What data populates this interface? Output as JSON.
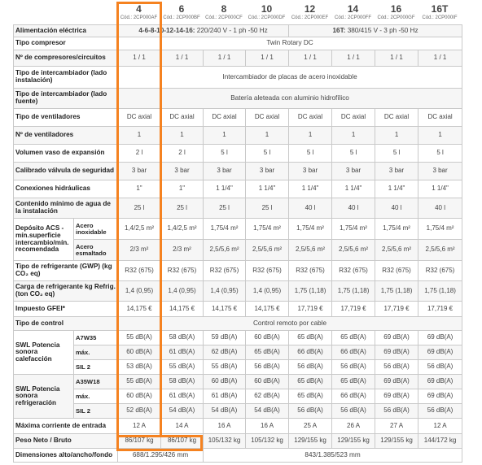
{
  "models": [
    {
      "number": "4",
      "code": "Cód.: 2CP000AF"
    },
    {
      "number": "6",
      "code": "Cód.: 2CP000BF"
    },
    {
      "number": "8",
      "code": "Cód.: 2CP000CF"
    },
    {
      "number": "10",
      "code": "Cód.: 2CP000DF"
    },
    {
      "number": "12",
      "code": "Cód.: 2CP000EF"
    },
    {
      "number": "14",
      "code": "Cód.: 2CP000FF"
    },
    {
      "number": "16",
      "code": "Cód.: 2CP000GF"
    },
    {
      "number": "16T",
      "code": "Cód.: 2CP000IF"
    }
  ],
  "power": {
    "label": "Alimentación eléctrica",
    "left_bold": "4-6-8-10-12-14-16:",
    "left_rest": " 220/240 V - 1 ph -50 Hz",
    "right_bold": "16T:",
    "right_rest": " 380/415 V - 3 ph -50 Hz"
  },
  "rows": [
    {
      "label": "Tipo compresor",
      "span": "Twin Rotary DC"
    },
    {
      "label": "Nº de compresores/circuitos",
      "values": [
        "1 / 1",
        "1 / 1",
        "1 / 1",
        "1 / 1",
        "1 / 1",
        "1 / 1",
        "1 / 1",
        "1 / 1"
      ]
    },
    {
      "label": "Tipo de intercambiador (lado instalación)",
      "span": "Intercambiador de placas de acero inoxidable"
    },
    {
      "label": "Tipo de intercambiador (lado fuente)",
      "span": "Batería aleteada con aluminio hidrofílico"
    },
    {
      "label": "Tipo de ventiladores",
      "values": [
        "DC axial",
        "DC axial",
        "DC axial",
        "DC axial",
        "DC axial",
        "DC axial",
        "DC axial",
        "DC axial"
      ]
    },
    {
      "label": "Nº de ventiladores",
      "values": [
        "1",
        "1",
        "1",
        "1",
        "1",
        "1",
        "1",
        "1"
      ]
    },
    {
      "label": "Volumen vaso de expansión",
      "values": [
        "2 l",
        "2 l",
        "5 l",
        "5 l",
        "5 l",
        "5 l",
        "5 l",
        "5 l"
      ]
    },
    {
      "label": "Calibrado válvula de seguridad",
      "values": [
        "3 bar",
        "3 bar",
        "3 bar",
        "3 bar",
        "3 bar",
        "3 bar",
        "3 bar",
        "3 bar"
      ]
    },
    {
      "label": "Conexiones hidráulicas",
      "values": [
        "1\"",
        "1\"",
        "1 1/4\"",
        "1 1/4\"",
        "1 1/4\"",
        "1 1/4\"",
        "1 1/4\"",
        "1 1/4\""
      ]
    },
    {
      "label": "Contenido mínimo de agua de la instalación",
      "values": [
        "25 l",
        "25 l",
        "25 l",
        "25 l",
        "40 l",
        "40 l",
        "40 l",
        "40 l"
      ]
    }
  ],
  "acs": {
    "label": "Depósito ACS - mín.superficie intercambio/mín. recomendada",
    "sub1": "Acero inoxidable",
    "values1": [
      "1,4/2,5 m²",
      "1,4/2,5 m²",
      "1,75/4 m²",
      "1,75/4 m²",
      "1,75/4 m²",
      "1,75/4 m²",
      "1,75/4 m²",
      "1,75/4 m²"
    ],
    "sub2": "Acero esmaltado",
    "values2": [
      "2/3 m²",
      "2/3 m²",
      "2,5/5,6 m²",
      "2,5/5,6 m²",
      "2,5/5,6 m²",
      "2,5/5,6 m²",
      "2,5/5,6 m²",
      "2,5/5,6 m²"
    ]
  },
  "rows2": [
    {
      "label": "Tipo de refrigerante (GWP) (kg CO₂ eq)",
      "values": [
        "R32 (675)",
        "R32 (675)",
        "R32 (675)",
        "R32 (675)",
        "R32 (675)",
        "R32 (675)",
        "R32 (675)",
        "R32 (675)"
      ]
    },
    {
      "label": "Carga de refrigerante kg Refrig. (ton CO₂ eq)",
      "values": [
        "1,4 (0,95)",
        "1,4 (0,95)",
        "1,4 (0,95)",
        "1,4 (0,95)",
        "1,75 (1,18)",
        "1,75 (1,18)",
        "1,75 (1,18)",
        "1,75 (1,18)"
      ]
    },
    {
      "label": "Impuesto GFEI*",
      "values": [
        "14,175 €",
        "14,175 €",
        "14,175 €",
        "14,175 €",
        "17,719 €",
        "17,719 €",
        "17,719 €",
        "17,719 €"
      ]
    },
    {
      "label": "Tipo de control",
      "span": "Control remoto por cable"
    }
  ],
  "swl_heat": {
    "label": "SWL Potencia sonora calefacción",
    "rows": [
      {
        "sub": "A7W35",
        "values": [
          "55 dB(A)",
          "58 dB(A)",
          "59 dB(A)",
          "60 dB(A)",
          "65 dB(A)",
          "65 dB(A)",
          "69 dB(A)",
          "69 dB(A)"
        ]
      },
      {
        "sub": "máx.",
        "values": [
          "60 dB(A)",
          "61 dB(A)",
          "62 dB(A)",
          "65 dB(A)",
          "66 dB(A)",
          "66 dB(A)",
          "69 dB(A)",
          "69 dB(A)"
        ]
      },
      {
        "sub": "SIL 2",
        "values": [
          "53 dB(A)",
          "55 dB(A)",
          "55 dB(A)",
          "56 dB(A)",
          "56 dB(A)",
          "56 dB(A)",
          "56 dB(A)",
          "56 dB(A)"
        ]
      }
    ]
  },
  "swl_cool": {
    "label": "SWL Potencia sonora refrigeración",
    "rows": [
      {
        "sub": "A35W18",
        "values": [
          "55 dB(A)",
          "58 dB(A)",
          "60 dB(A)",
          "60 dB(A)",
          "65 dB(A)",
          "65 dB(A)",
          "69 dB(A)",
          "69 dB(A)"
        ]
      },
      {
        "sub": "máx.",
        "values": [
          "60 dB(A)",
          "61 dB(A)",
          "61 dB(A)",
          "62 dB(A)",
          "65 dB(A)",
          "66 dB(A)",
          "69 dB(A)",
          "69 dB(A)"
        ]
      },
      {
        "sub": "SIL 2",
        "values": [
          "52 dB(A)",
          "54 dB(A)",
          "54 dB(A)",
          "54 dB(A)",
          "56 dB(A)",
          "56 dB(A)",
          "56 dB(A)",
          "56 dB(A)"
        ]
      }
    ]
  },
  "rows3": [
    {
      "label": "Máxima corriente de entrada",
      "values": [
        "12 A",
        "14 A",
        "16 A",
        "16 A",
        "25 A",
        "26 A",
        "27 A",
        "12 A"
      ]
    },
    {
      "label": "Peso Neto / Bruto",
      "values": [
        "86/107 kg",
        "86/107 kg",
        "105/132 kg",
        "105/132 kg",
        "129/155 kg",
        "129/155 kg",
        "129/155 kg",
        "144/172 kg"
      ]
    }
  ],
  "dimensions": {
    "label": "Dimensiones alto/ancho/fondo",
    "first": "688/1.295/426 mm",
    "rest": "843/1.385/523 mm"
  },
  "highlight_color": "#f58220"
}
